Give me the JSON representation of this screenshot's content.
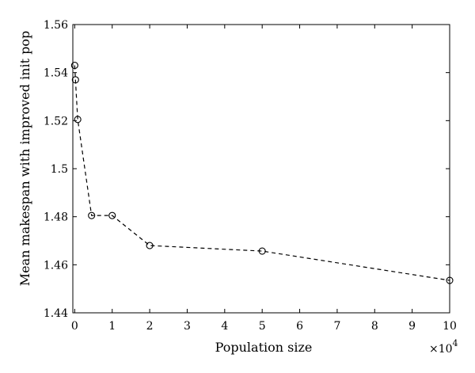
{
  "chart_data": {
    "type": "line",
    "title": "",
    "xlabel": "Population size",
    "ylabel": "Mean makespan with improved init pop",
    "x_multiplier": "×10",
    "x_multiplier_exponent": "4",
    "xlim": [
      -0.05,
      10
    ],
    "ylim": [
      1.44,
      1.56
    ],
    "x_ticks": [
      0,
      1,
      2,
      3,
      4,
      5,
      6,
      7,
      8,
      9,
      10
    ],
    "x_tick_labels": [
      "0",
      "1",
      "2",
      "3",
      "4",
      "5",
      "6",
      "7",
      "8",
      "9",
      "10"
    ],
    "y_ticks": [
      1.44,
      1.46,
      1.48,
      1.5,
      1.52,
      1.54,
      1.56
    ],
    "y_tick_labels": [
      "1.44",
      "1.46",
      "1.48",
      "1.5",
      "1.52",
      "1.54",
      "1.56"
    ],
    "grid": false,
    "line_style": "dashed",
    "marker": "circle-open",
    "line_color": "#000000",
    "series": [
      {
        "x": [
          0.0,
          0.02,
          0.08,
          0.45,
          1.0,
          2.0,
          5.0,
          10.0
        ],
        "y": [
          1.543,
          1.537,
          1.5205,
          1.4805,
          1.4805,
          1.468,
          1.4657,
          1.4535
        ]
      }
    ]
  }
}
